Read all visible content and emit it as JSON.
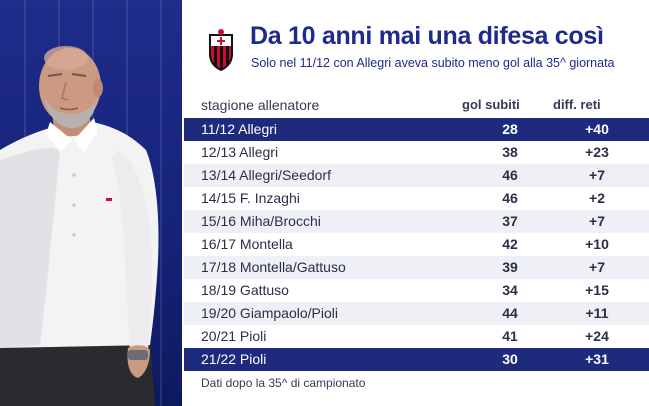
{
  "header": {
    "title": "Da 10 anni mai una difesa così",
    "subtitle": "Solo nel 11/12 con Allegri aveva subito meno gol alla 35^ giornata"
  },
  "table": {
    "columns": [
      "stagione allenatore",
      "gol subiti",
      "diff. reti"
    ],
    "rows": [
      {
        "season": "11/12 Allegri",
        "goals": "28",
        "diff": "+40",
        "highlight": true
      },
      {
        "season": "12/13 Allegri",
        "goals": "38",
        "diff": "+23",
        "highlight": false
      },
      {
        "season": "13/14 Allegri/Seedorf",
        "goals": "46",
        "diff": "+7",
        "highlight": false
      },
      {
        "season": "14/15 F. Inzaghi",
        "goals": "46",
        "diff": "+2",
        "highlight": false
      },
      {
        "season": "15/16 Miha/Brocchi",
        "goals": "37",
        "diff": "+7",
        "highlight": false
      },
      {
        "season": "16/17 Montella",
        "goals": "42",
        "diff": "+10",
        "highlight": false
      },
      {
        "season": "17/18 Montella/Gattuso",
        "goals": "39",
        "diff": "+7",
        "highlight": false
      },
      {
        "season": "18/19 Gattuso",
        "goals": "34",
        "diff": "+15",
        "highlight": false
      },
      {
        "season": "19/20 Giampaolo/Pioli",
        "goals": "44",
        "diff": "+11",
        "highlight": false
      },
      {
        "season": "20/21 Pioli",
        "goals": "41",
        "diff": "+24",
        "highlight": false
      },
      {
        "season": "21/22 Pioli",
        "goals": "30",
        "diff": "+31",
        "highlight": true
      }
    ]
  },
  "footnote": "Dati dopo la 35^ di campionato",
  "logo": {
    "icon": "ac-milan-crest-icon"
  },
  "photo": {
    "icon": "coach-photo"
  },
  "colors": {
    "brand_blue": "#1e2a8c",
    "highlight_row": "#1e2a7c",
    "stripe_row": "#eef0f5",
    "milan_red": "#c8102e"
  }
}
